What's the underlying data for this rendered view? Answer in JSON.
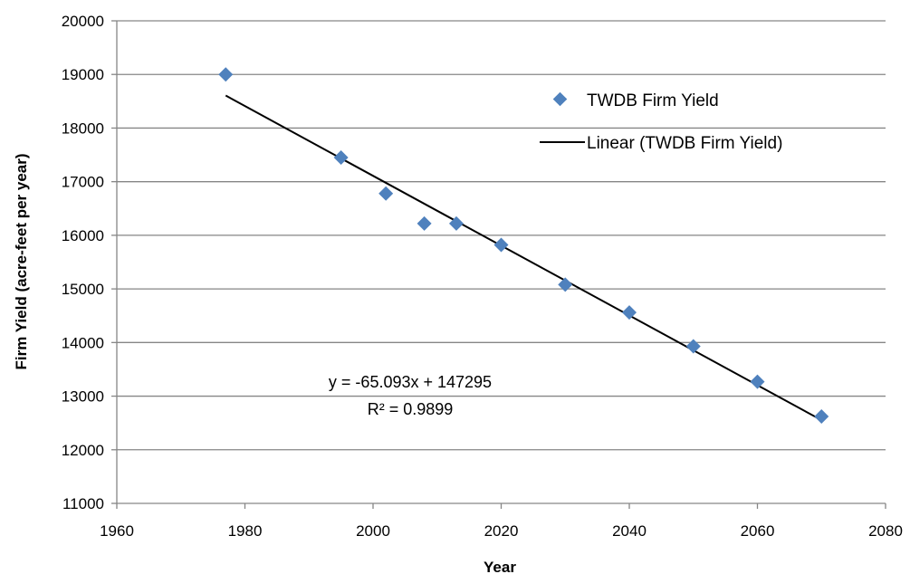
{
  "chart_data": {
    "type": "scatter",
    "xlabel": "Year",
    "ylabel": "Firm Yield (acre-feet per year)",
    "xlim": [
      1960,
      2080
    ],
    "ylim": [
      11000,
      20000
    ],
    "x_ticks": [
      1960,
      1980,
      2000,
      2020,
      2040,
      2060,
      2080
    ],
    "y_ticks": [
      11000,
      12000,
      13000,
      14000,
      15000,
      16000,
      17000,
      18000,
      19000,
      20000
    ],
    "grid": "horizontal",
    "legend_position": "top-right",
    "series": [
      {
        "name": "TWDB Firm Yield",
        "marker": "diamond",
        "color": "#4f81bd",
        "x": [
          1977,
          1995,
          2002,
          2008,
          2013,
          2020,
          2030,
          2040,
          2050,
          2060,
          2070
        ],
        "y": [
          19000,
          17450,
          16780,
          16220,
          16220,
          15820,
          15080,
          14560,
          13930,
          13270,
          12620
        ]
      }
    ],
    "trendline": {
      "name": "Linear (TWDB Firm Yield)",
      "color": "#000000",
      "slope": -65.093,
      "intercept": 147295,
      "x_start": 1977,
      "x_end": 2070
    },
    "annotations": {
      "equation": "y = -65.093x + 147295",
      "r_squared": "R² = 0.9899"
    }
  }
}
